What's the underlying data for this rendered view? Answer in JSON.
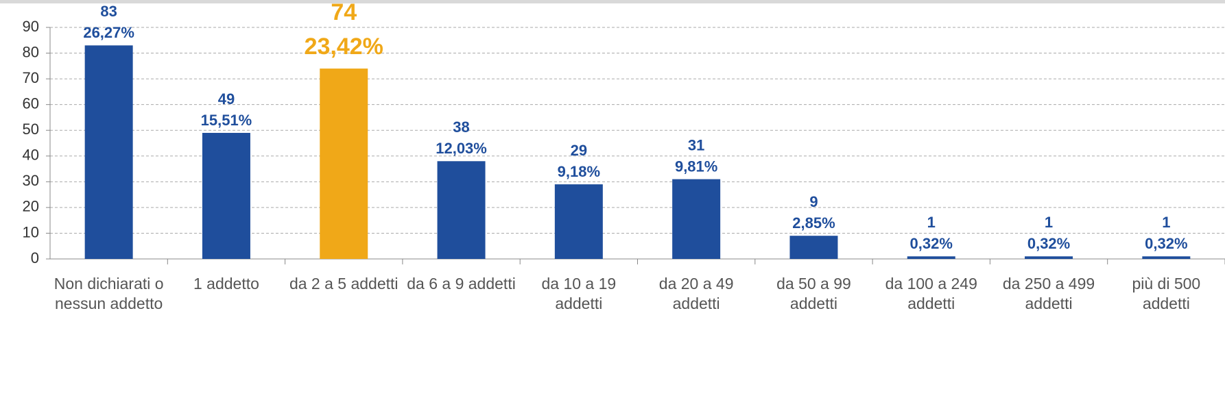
{
  "chart_data": {
    "type": "bar",
    "categories": [
      "Non dichiarati o nessun addetto",
      "1 addetto",
      "da 2 a 5 addetti",
      "da 6 a 9 addetti",
      "da 10 a 19 addetti",
      "da 20 a 49 addetti",
      "da 50 a 99 addetti",
      "da 100 a 249 addetti",
      "da 250 a 499 addetti",
      "più di 500 addetti"
    ],
    "values": [
      83,
      49,
      74,
      38,
      29,
      31,
      9,
      1,
      1,
      1
    ],
    "percentage_labels": [
      "26,27%",
      "15,51%",
      "23,42%",
      "12,03%",
      "9,18%",
      "9,81%",
      "2,85%",
      "0,32%",
      "0,32%",
      "0,32%"
    ],
    "colors": [
      "#1f4e9c",
      "#1f4e9c",
      "#f0a818",
      "#1f4e9c",
      "#1f4e9c",
      "#1f4e9c",
      "#1f4e9c",
      "#1f4e9c",
      "#1f4e9c",
      "#1f4e9c"
    ],
    "ylim": [
      0,
      90
    ],
    "yticks": [
      0,
      10,
      20,
      30,
      40,
      50,
      60,
      70,
      80,
      90
    ],
    "grid": true
  }
}
